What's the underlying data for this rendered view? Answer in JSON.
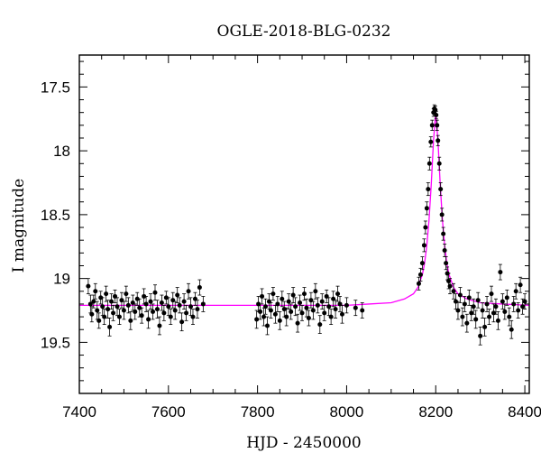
{
  "chart_data": {
    "type": "scatter",
    "title": "OGLE-2018-BLG-0232",
    "xlabel": "HJD - 2450000",
    "ylabel": "I magnitude",
    "xlim": [
      7400,
      8410
    ],
    "ylim": [
      19.9,
      17.25
    ],
    "y_inverted": true,
    "x_ticks": [
      7400,
      7600,
      7800,
      8000,
      8200,
      8400
    ],
    "x_tick_labels": [
      "7400",
      "7600",
      "7800",
      "8000",
      "8200",
      "8400"
    ],
    "y_ticks": [
      17.5,
      18,
      18.5,
      19,
      19.5
    ],
    "y_tick_labels": [
      "17.5",
      "18",
      "18.5",
      "19",
      "19.5"
    ],
    "grid": false,
    "legend": "none",
    "colors": {
      "data": "#000000",
      "model": "#ff00ff",
      "axes": "#000000"
    },
    "model": {
      "name": "",
      "baseline_mag": 19.21,
      "peak_time": 8200,
      "peak_mag": 17.7,
      "x": [
        7400,
        7500,
        7600,
        7700,
        7800,
        7900,
        8000,
        8050,
        8100,
        8130,
        8150,
        8160,
        8170,
        8175,
        8180,
        8185,
        8190,
        8195,
        8200,
        8205,
        8210,
        8215,
        8220,
        8225,
        8230,
        8240,
        8250,
        8270,
        8300,
        8350,
        8410
      ],
      "y": [
        19.21,
        19.21,
        19.21,
        19.21,
        19.21,
        19.21,
        19.21,
        19.2,
        19.19,
        19.16,
        19.12,
        19.07,
        18.97,
        18.88,
        18.74,
        18.54,
        18.26,
        17.92,
        17.7,
        17.92,
        18.26,
        18.54,
        18.74,
        18.88,
        18.97,
        19.07,
        19.12,
        19.16,
        19.19,
        19.2,
        19.21
      ]
    },
    "series": [
      {
        "name": "",
        "points": [
          [
            7420,
            19.06,
            0.06
          ],
          [
            7425,
            19.2,
            0.07
          ],
          [
            7428,
            19.28,
            0.06
          ],
          [
            7432,
            19.18,
            0.05
          ],
          [
            7436,
            19.1,
            0.06
          ],
          [
            7440,
            19.25,
            0.07
          ],
          [
            7444,
            19.33,
            0.06
          ],
          [
            7448,
            19.15,
            0.05
          ],
          [
            7452,
            19.22,
            0.07
          ],
          [
            7456,
            19.3,
            0.06
          ],
          [
            7460,
            19.12,
            0.06
          ],
          [
            7464,
            19.24,
            0.07
          ],
          [
            7468,
            19.38,
            0.07
          ],
          [
            7472,
            19.18,
            0.06
          ],
          [
            7476,
            19.27,
            0.06
          ],
          [
            7480,
            19.14,
            0.05
          ],
          [
            7485,
            19.22,
            0.07
          ],
          [
            7490,
            19.3,
            0.06
          ],
          [
            7495,
            19.17,
            0.06
          ],
          [
            7500,
            19.25,
            0.07
          ],
          [
            7505,
            19.12,
            0.06
          ],
          [
            7510,
            19.21,
            0.06
          ],
          [
            7515,
            19.33,
            0.07
          ],
          [
            7520,
            19.19,
            0.06
          ],
          [
            7525,
            19.26,
            0.06
          ],
          [
            7530,
            19.16,
            0.05
          ],
          [
            7535,
            19.23,
            0.07
          ],
          [
            7540,
            19.29,
            0.06
          ],
          [
            7545,
            19.14,
            0.06
          ],
          [
            7550,
            19.2,
            0.06
          ],
          [
            7555,
            19.32,
            0.07
          ],
          [
            7560,
            19.18,
            0.06
          ],
          [
            7565,
            19.26,
            0.06
          ],
          [
            7570,
            19.11,
            0.06
          ],
          [
            7575,
            19.24,
            0.07
          ],
          [
            7580,
            19.37,
            0.07
          ],
          [
            7585,
            19.19,
            0.06
          ],
          [
            7590,
            19.27,
            0.06
          ],
          [
            7595,
            19.15,
            0.05
          ],
          [
            7600,
            19.22,
            0.07
          ],
          [
            7605,
            19.3,
            0.06
          ],
          [
            7610,
            19.17,
            0.06
          ],
          [
            7615,
            19.25,
            0.07
          ],
          [
            7620,
            19.13,
            0.06
          ],
          [
            7625,
            19.21,
            0.06
          ],
          [
            7630,
            19.34,
            0.07
          ],
          [
            7635,
            19.18,
            0.06
          ],
          [
            7640,
            19.27,
            0.06
          ],
          [
            7645,
            19.1,
            0.06
          ],
          [
            7650,
            19.22,
            0.07
          ],
          [
            7655,
            19.3,
            0.06
          ],
          [
            7660,
            19.16,
            0.05
          ],
          [
            7665,
            19.24,
            0.07
          ],
          [
            7670,
            19.07,
            0.06
          ],
          [
            7678,
            19.2,
            0.06
          ],
          [
            7798,
            19.32,
            0.07
          ],
          [
            7802,
            19.2,
            0.06
          ],
          [
            7806,
            19.26,
            0.06
          ],
          [
            7810,
            19.14,
            0.06
          ],
          [
            7814,
            19.3,
            0.07
          ],
          [
            7818,
            19.22,
            0.06
          ],
          [
            7822,
            19.37,
            0.07
          ],
          [
            7826,
            19.18,
            0.06
          ],
          [
            7830,
            19.25,
            0.06
          ],
          [
            7835,
            19.12,
            0.05
          ],
          [
            7840,
            19.28,
            0.07
          ],
          [
            7845,
            19.2,
            0.06
          ],
          [
            7850,
            19.33,
            0.07
          ],
          [
            7855,
            19.16,
            0.06
          ],
          [
            7860,
            19.24,
            0.06
          ],
          [
            7865,
            19.3,
            0.07
          ],
          [
            7870,
            19.18,
            0.06
          ],
          [
            7875,
            19.26,
            0.06
          ],
          [
            7880,
            19.13,
            0.06
          ],
          [
            7885,
            19.22,
            0.07
          ],
          [
            7890,
            19.35,
            0.07
          ],
          [
            7895,
            19.19,
            0.06
          ],
          [
            7900,
            19.27,
            0.06
          ],
          [
            7905,
            19.12,
            0.05
          ],
          [
            7910,
            19.23,
            0.07
          ],
          [
            7915,
            19.31,
            0.06
          ],
          [
            7920,
            19.17,
            0.06
          ],
          [
            7925,
            19.25,
            0.07
          ],
          [
            7930,
            19.1,
            0.06
          ],
          [
            7935,
            19.21,
            0.06
          ],
          [
            7940,
            19.36,
            0.07
          ],
          [
            7945,
            19.18,
            0.06
          ],
          [
            7950,
            19.27,
            0.06
          ],
          [
            7955,
            19.14,
            0.05
          ],
          [
            7960,
            19.22,
            0.07
          ],
          [
            7965,
            19.3,
            0.06
          ],
          [
            7970,
            19.16,
            0.06
          ],
          [
            7975,
            19.24,
            0.07
          ],
          [
            7980,
            19.12,
            0.06
          ],
          [
            7985,
            19.2,
            0.06
          ],
          [
            7990,
            19.28,
            0.07
          ],
          [
            8000,
            19.21,
            0.06
          ],
          [
            8020,
            19.23,
            0.06
          ],
          [
            8035,
            19.25,
            0.06
          ],
          [
            8162,
            19.04,
            0.05
          ],
          [
            8166,
            18.97,
            0.05
          ],
          [
            8170,
            18.88,
            0.05
          ],
          [
            8174,
            18.74,
            0.05
          ],
          [
            8177,
            18.6,
            0.05
          ],
          [
            8180,
            18.45,
            0.05
          ],
          [
            8183,
            18.3,
            0.05
          ],
          [
            8186,
            18.1,
            0.05
          ],
          [
            8189,
            17.93,
            0.04
          ],
          [
            8192,
            17.8,
            0.04
          ],
          [
            8195,
            17.7,
            0.03
          ],
          [
            8197,
            17.67,
            0.03
          ],
          [
            8199,
            17.68,
            0.03
          ],
          [
            8201,
            17.72,
            0.03
          ],
          [
            8203,
            17.8,
            0.04
          ],
          [
            8205,
            17.92,
            0.04
          ],
          [
            8208,
            18.1,
            0.05
          ],
          [
            8211,
            18.3,
            0.05
          ],
          [
            8214,
            18.5,
            0.05
          ],
          [
            8217,
            18.65,
            0.05
          ],
          [
            8220,
            18.78,
            0.05
          ],
          [
            8223,
            18.88,
            0.05
          ],
          [
            8226,
            18.96,
            0.05
          ],
          [
            8229,
            19.02,
            0.06
          ],
          [
            8232,
            19.06,
            0.06
          ],
          [
            8240,
            19.1,
            0.06
          ],
          [
            8245,
            19.18,
            0.06
          ],
          [
            8250,
            19.25,
            0.07
          ],
          [
            8255,
            19.13,
            0.06
          ],
          [
            8260,
            19.3,
            0.07
          ],
          [
            8265,
            19.2,
            0.06
          ],
          [
            8270,
            19.35,
            0.07
          ],
          [
            8275,
            19.15,
            0.06
          ],
          [
            8280,
            19.27,
            0.06
          ],
          [
            8285,
            19.22,
            0.06
          ],
          [
            8290,
            19.32,
            0.07
          ],
          [
            8295,
            19.17,
            0.06
          ],
          [
            8300,
            19.45,
            0.07
          ],
          [
            8305,
            19.25,
            0.06
          ],
          [
            8310,
            19.38,
            0.07
          ],
          [
            8315,
            19.2,
            0.06
          ],
          [
            8320,
            19.3,
            0.06
          ],
          [
            8325,
            19.12,
            0.06
          ],
          [
            8330,
            19.27,
            0.07
          ],
          [
            8335,
            19.22,
            0.06
          ],
          [
            8340,
            19.33,
            0.07
          ],
          [
            8345,
            18.95,
            0.06
          ],
          [
            8350,
            19.18,
            0.06
          ],
          [
            8355,
            19.26,
            0.06
          ],
          [
            8360,
            19.15,
            0.06
          ],
          [
            8365,
            19.3,
            0.07
          ],
          [
            8370,
            19.4,
            0.07
          ],
          [
            8375,
            19.2,
            0.06
          ],
          [
            8380,
            19.1,
            0.06
          ],
          [
            8385,
            19.25,
            0.06
          ],
          [
            8390,
            19.05,
            0.06
          ],
          [
            8395,
            19.22,
            0.06
          ],
          [
            8400,
            19.18,
            0.06
          ]
        ]
      }
    ]
  }
}
